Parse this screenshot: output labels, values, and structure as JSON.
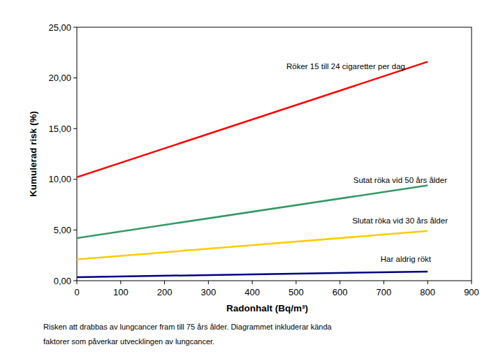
{
  "chart_data": {
    "type": "line",
    "x_label": "Radonhalt (Bq/m³)",
    "y_label": "Kumulerad risk (%)",
    "annotations": [
      "Risken att drabbas av lungcancer fram till  75 års ålder. Diagrammet inkluderar kända",
      "faktorer som påverkar utvecklingen av lungcancer."
    ],
    "x": [
      0,
      800
    ],
    "series": [
      {
        "name": "Röker 15 till 24 cigaretter per dag",
        "color": "#ff0000",
        "values": [
          10.2,
          21.6
        ]
      },
      {
        "name": "Sutat röka vid 50 års ålder",
        "color": "#339966",
        "values": [
          4.2,
          9.4
        ]
      },
      {
        "name": "Slutat röka vid 30 års ålder",
        "color": "#ffcc00",
        "values": [
          2.1,
          4.9
        ]
      },
      {
        "name": "Har aldrig rökt",
        "color": "#000080",
        "values": [
          0.35,
          0.9
        ]
      }
    ],
    "xlim": [
      0,
      900
    ],
    "xticks": [
      0,
      100,
      200,
      300,
      400,
      500,
      600,
      700,
      800,
      900
    ],
    "ylim": [
      0,
      25
    ],
    "yticks": [
      {
        "value": 0,
        "label": "0,00"
      },
      {
        "value": 5,
        "label": "5,00"
      },
      {
        "value": 10,
        "label": "10,00"
      },
      {
        "value": 15,
        "label": "15,00"
      },
      {
        "value": 20,
        "label": "20,00"
      },
      {
        "value": 25,
        "label": "25,00"
      }
    ],
    "grid": false
  }
}
